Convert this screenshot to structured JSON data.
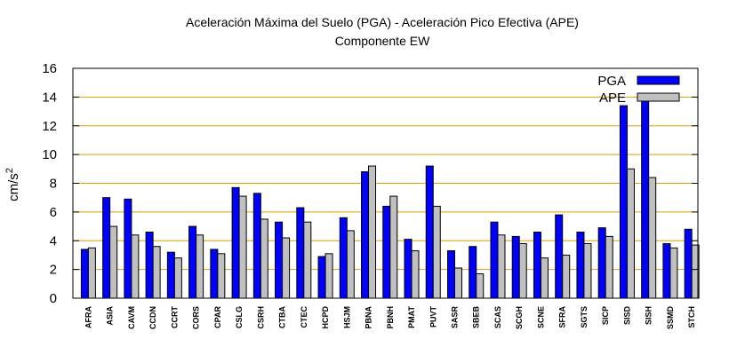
{
  "chart_data": {
    "type": "bar",
    "title": "Aceleración Máxima del Suelo (PGA) -  Aceleración Pico Efectiva (APE)",
    "subtitle": "Componente EW",
    "ylabel": "cm/s",
    "ylabel_superscript": "2",
    "ylim": [
      0,
      16
    ],
    "yticks": [
      0,
      2,
      4,
      6,
      8,
      10,
      12,
      14,
      16
    ],
    "grid": true,
    "legend_position": "top-right",
    "categories": [
      "AFRA",
      "ASIA",
      "CAVM",
      "CCDN",
      "CCRT",
      "CORS",
      "CPAR",
      "CSLG",
      "CSRH",
      "CTBA",
      "CTEC",
      "HCPD",
      "HSJM",
      "PBNA",
      "PBNH",
      "PMAT",
      "PUVT",
      "SASR",
      "SBEB",
      "SCAS",
      "SCGH",
      "SCNE",
      "SFRA",
      "SGTS",
      "SICP",
      "SISD",
      "SISH",
      "SSMD",
      "STCH"
    ],
    "series": [
      {
        "name": "PGA",
        "color": "#0000ff",
        "values": [
          3.4,
          7.0,
          6.9,
          4.6,
          3.2,
          5.0,
          3.4,
          7.7,
          7.3,
          5.3,
          6.3,
          2.9,
          5.6,
          8.8,
          6.4,
          4.1,
          9.2,
          3.3,
          3.6,
          5.3,
          4.3,
          4.6,
          5.8,
          4.6,
          4.9,
          13.4,
          14.1,
          3.8,
          4.8
        ]
      },
      {
        "name": "APE",
        "color": "#c0c0c0",
        "values": [
          3.5,
          5.0,
          4.4,
          3.6,
          2.8,
          4.4,
          3.1,
          7.1,
          5.5,
          4.2,
          5.3,
          3.1,
          4.7,
          9.2,
          7.1,
          3.3,
          6.4,
          2.1,
          1.7,
          4.4,
          3.8,
          2.8,
          3.0,
          3.8,
          4.3,
          9.0,
          8.4,
          3.5,
          3.7
        ]
      }
    ]
  }
}
